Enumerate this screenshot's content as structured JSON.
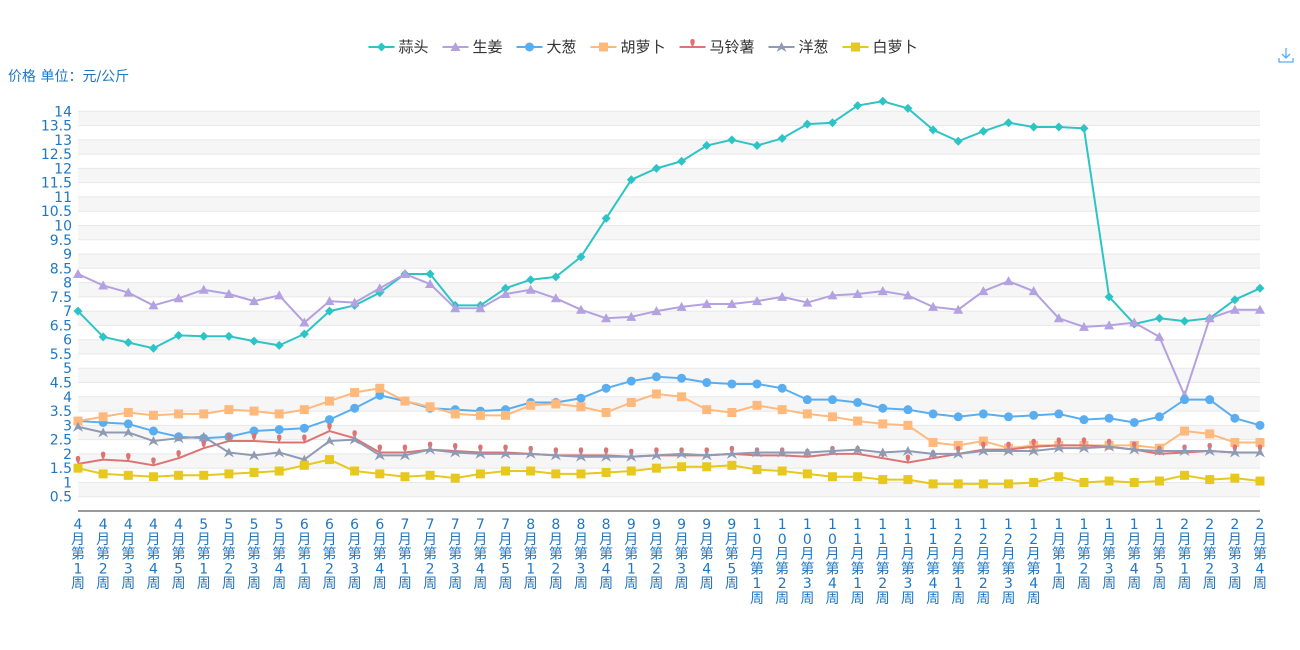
{
  "toolbar": {
    "download_icon": "download-icon"
  },
  "chart_data": {
    "type": "line",
    "ylabel": "价格 单位：元/公斤",
    "ylim": [
      0,
      14.5
    ],
    "y_ticks": [
      0.5,
      1,
      1.5,
      2,
      2.5,
      3,
      3.5,
      4,
      4.5,
      5,
      5.5,
      6,
      6.5,
      7,
      7.5,
      8,
      8.5,
      9,
      9.5,
      10,
      10.5,
      11,
      11.5,
      12,
      12.5,
      13,
      13.5,
      14
    ],
    "grid": "horizontal",
    "legend_position": "top-center",
    "categories": [
      "4月第1周",
      "4月第2周",
      "4月第3周",
      "4月第4周",
      "4月第5周",
      "5月第1周",
      "5月第2周",
      "5月第3周",
      "5月第4周",
      "6月第1周",
      "6月第2周",
      "6月第3周",
      "6月第4周",
      "7月第1周",
      "7月第2周",
      "7月第3周",
      "7月第4周",
      "7月第5周",
      "8月第1周",
      "8月第2周",
      "8月第3周",
      "8月第4周",
      "9月第1周",
      "9月第2周",
      "9月第3周",
      "9月第4周",
      "9月第5周",
      "10月第1周",
      "10月第2周",
      "10月第3周",
      "10月第4周",
      "11月第1周",
      "11月第2周",
      "11月第3周",
      "11月第4周",
      "12月第1周",
      "12月第2周",
      "12月第3周",
      "12月第4周",
      "1月第1周",
      "1月第2周",
      "1月第3周",
      "1月第4周",
      "1月第5周",
      "2月第1周",
      "2月第2周",
      "2月第3周",
      "2月第4周"
    ],
    "series": [
      {
        "name": "蒜头",
        "color": "#2ec4c6",
        "symbol": "diamond",
        "values": [
          7.0,
          6.1,
          5.9,
          5.7,
          6.15,
          6.12,
          6.12,
          5.95,
          5.8,
          6.2,
          7.0,
          7.2,
          7.65,
          8.3,
          8.3,
          7.2,
          7.2,
          7.8,
          8.1,
          8.2,
          8.9,
          10.25,
          11.6,
          12.0,
          12.25,
          12.8,
          13.0,
          12.8,
          13.05,
          13.55,
          13.6,
          14.2,
          14.35,
          14.1,
          13.35,
          12.95,
          13.3,
          13.6,
          13.45,
          13.45,
          13.4,
          7.5,
          6.55,
          6.75,
          6.65,
          6.75,
          7.4,
          7.8
        ]
      },
      {
        "name": "生姜",
        "color": "#b3a1e0",
        "symbol": "triangle",
        "values": [
          8.3,
          7.9,
          7.65,
          7.2,
          7.45,
          7.75,
          7.6,
          7.35,
          7.55,
          6.6,
          7.35,
          7.3,
          7.8,
          8.3,
          7.95,
          7.1,
          7.1,
          7.6,
          7.75,
          7.45,
          7.05,
          6.75,
          6.8,
          7.0,
          7.15,
          7.25,
          7.25,
          7.35,
          7.5,
          7.3,
          7.55,
          7.6,
          7.7,
          7.55,
          7.15,
          7.05,
          7.7,
          8.05,
          7.7,
          6.75,
          6.45,
          6.5,
          6.6,
          6.1,
          4.05,
          6.75,
          7.05,
          7.05
        ]
      },
      {
        "name": "大葱",
        "color": "#5aaef0",
        "symbol": "circle",
        "values": [
          3.15,
          3.1,
          3.05,
          2.8,
          2.6,
          2.55,
          2.6,
          2.8,
          2.85,
          2.9,
          3.2,
          3.6,
          4.05,
          3.85,
          3.6,
          3.55,
          3.5,
          3.55,
          3.8,
          3.8,
          3.95,
          4.3,
          4.55,
          4.7,
          4.65,
          4.5,
          4.45,
          4.45,
          4.3,
          3.9,
          3.9,
          3.8,
          3.6,
          3.55,
          3.4,
          3.3,
          3.4,
          3.3,
          3.35,
          3.4,
          3.2,
          3.25,
          3.1,
          3.3,
          3.9,
          3.9,
          3.25,
          3.0
        ]
      },
      {
        "name": "胡萝卜",
        "color": "#ffb97d",
        "symbol": "square",
        "values": [
          3.15,
          3.3,
          3.45,
          3.35,
          3.4,
          3.4,
          3.55,
          3.5,
          3.4,
          3.55,
          3.85,
          4.15,
          4.3,
          3.85,
          3.65,
          3.4,
          3.35,
          3.35,
          3.7,
          3.75,
          3.65,
          3.45,
          3.8,
          4.1,
          4.0,
          3.55,
          3.45,
          3.7,
          3.55,
          3.4,
          3.3,
          3.15,
          3.05,
          3.0,
          2.4,
          2.3,
          2.45,
          2.2,
          2.3,
          2.3,
          2.3,
          2.3,
          2.3,
          2.2,
          2.8,
          2.7,
          2.4,
          2.4
        ]
      },
      {
        "name": "马铃薯",
        "color": "#dd7474",
        "symbol": "pin",
        "values": [
          1.65,
          1.8,
          1.75,
          1.6,
          1.85,
          2.2,
          2.45,
          2.45,
          2.4,
          2.4,
          2.8,
          2.55,
          2.05,
          2.05,
          2.15,
          2.1,
          2.05,
          2.05,
          2.0,
          1.95,
          1.95,
          1.95,
          1.9,
          1.95,
          1.95,
          1.95,
          2.0,
          1.95,
          1.95,
          1.9,
          2.0,
          2.0,
          1.85,
          1.7,
          1.85,
          2.0,
          2.15,
          2.15,
          2.25,
          2.3,
          2.3,
          2.25,
          2.15,
          2.0,
          2.05,
          2.1,
          2.05,
          2.05
        ]
      },
      {
        "name": "洋葱",
        "color": "#8f9ab5",
        "symbol": "arrow",
        "values": [
          2.95,
          2.75,
          2.75,
          2.45,
          2.55,
          2.6,
          2.05,
          1.95,
          2.05,
          1.8,
          2.45,
          2.5,
          1.95,
          1.95,
          2.15,
          2.05,
          2.0,
          2.0,
          2.0,
          1.95,
          1.9,
          1.9,
          1.9,
          1.95,
          2.0,
          1.95,
          2.0,
          2.05,
          2.05,
          2.05,
          2.1,
          2.15,
          2.05,
          2.1,
          2.0,
          2.0,
          2.1,
          2.1,
          2.1,
          2.2,
          2.2,
          2.25,
          2.15,
          2.1,
          2.1,
          2.1,
          2.05,
          2.05
        ]
      },
      {
        "name": "白萝卜",
        "color": "#e6c81e",
        "symbol": "square",
        "values": [
          1.5,
          1.3,
          1.25,
          1.2,
          1.25,
          1.25,
          1.3,
          1.35,
          1.4,
          1.6,
          1.8,
          1.4,
          1.3,
          1.2,
          1.25,
          1.15,
          1.3,
          1.4,
          1.4,
          1.3,
          1.3,
          1.35,
          1.4,
          1.5,
          1.55,
          1.55,
          1.6,
          1.45,
          1.4,
          1.3,
          1.2,
          1.2,
          1.1,
          1.1,
          0.95,
          0.95,
          0.95,
          0.95,
          1.0,
          1.2,
          1.0,
          1.05,
          1.0,
          1.05,
          1.25,
          1.1,
          1.15,
          1.05
        ]
      }
    ]
  }
}
